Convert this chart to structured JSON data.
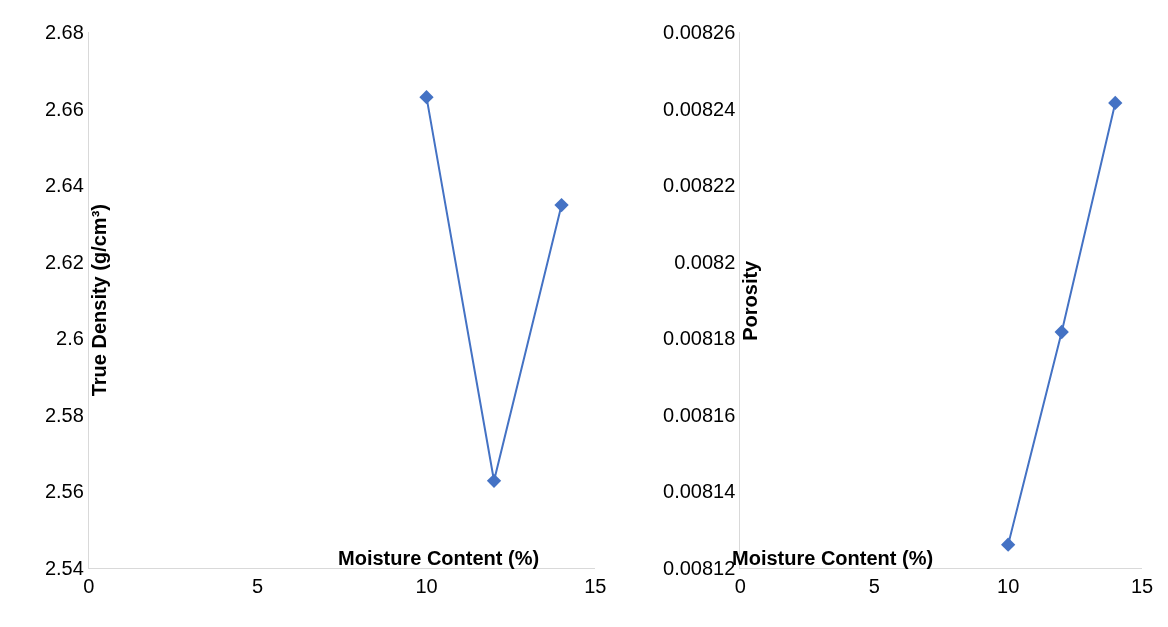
{
  "chart_data": [
    {
      "type": "line",
      "xlabel": "Moisture Content (%)",
      "ylabel": "True Density (g/cm³)",
      "x": [
        10,
        12,
        14
      ],
      "values": [
        2.663,
        2.5627,
        2.6348
      ],
      "color": "#4472c4",
      "marker": "diamond",
      "line_style": "solid",
      "xlim": [
        0,
        15
      ],
      "xticks": [
        0,
        5,
        10,
        15
      ],
      "ylim": [
        2.54,
        2.68
      ],
      "yticks": [
        2.54,
        2.56,
        2.58,
        2.6,
        2.62,
        2.64,
        2.66,
        2.68
      ]
    },
    {
      "type": "line",
      "xlabel": "Moisture Content (%)",
      "ylabel": "Porosity",
      "x": [
        10,
        12,
        14
      ],
      "values": [
        0.008126,
        0.0081816,
        0.0082415
      ],
      "color": "#4472c4",
      "marker": "diamond",
      "line_style": "solid",
      "xlim": [
        0,
        15
      ],
      "xticks": [
        0,
        5,
        10,
        15
      ],
      "ylim": [
        0.00812,
        0.00826
      ],
      "yticks": [
        0.00812,
        0.00814,
        0.00816,
        0.00818,
        0.0082,
        0.00822,
        0.00824,
        0.00826
      ]
    }
  ]
}
